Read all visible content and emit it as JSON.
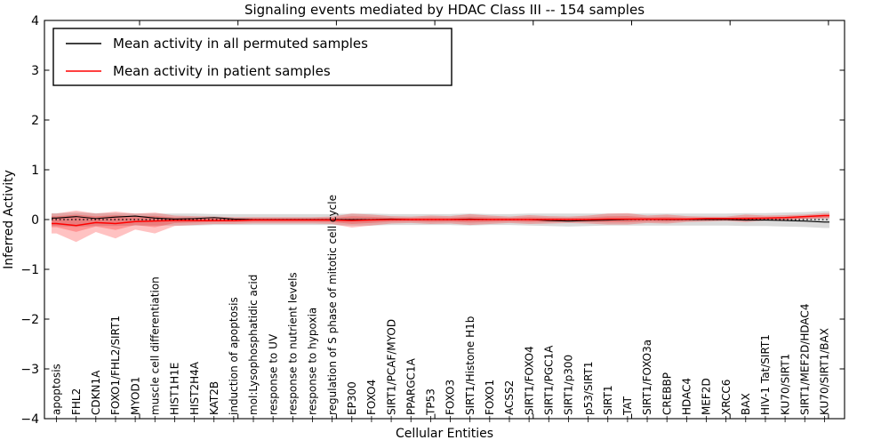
{
  "legend": {
    "items": [
      {
        "label": "Mean activity in all permuted samples",
        "color": "#000000"
      },
      {
        "label": "Mean activity in patient samples",
        "color": "#ff0000"
      }
    ]
  },
  "chart_data": {
    "type": "line",
    "title": "Signaling events mediated by HDAC Class III -- 154 samples",
    "xlabel": "Cellular Entities",
    "ylabel": "Inferred Activity",
    "ylim": [
      -4,
      4
    ],
    "grid": false,
    "legend_position": "upper left",
    "zero_line": {
      "style": "dotted",
      "color": "#000000",
      "y": 0
    },
    "ytick_values": [
      4,
      3,
      2,
      1,
      0,
      -1,
      -2,
      -3,
      -4
    ],
    "ytick_labels": [
      "4",
      "3",
      "2",
      "1",
      "0",
      "−1",
      "−2",
      "−3",
      "−4"
    ],
    "categories": [
      "apoptosis",
      "FHL2",
      "CDKN1A",
      "FOXO1/FHL2/SIRT1",
      "MYOD1",
      "muscle cell differentiation",
      "HIST1H1E",
      "HIST2H4A",
      "KAT2B",
      "induction of apoptosis",
      "mol:Lysophosphatidic acid",
      "response to UV",
      "response to nutrient levels",
      "response to hypoxia",
      "regulation of S phase of mitotic cell cycle",
      "EP300",
      "FOXO4",
      "SIRT1/PCAF/MYOD",
      "PPARGC1A",
      "TP53",
      "FOXO3",
      "SIRT1/Histone H1b",
      "FOXO1",
      "ACSS2",
      "SIRT1/FOXO4",
      "SIRT1/PGC1A",
      "SIRT1/p300",
      "p53/SIRT1",
      "SIRT1",
      "TAT",
      "SIRT1/FOXO3a",
      "CREBBP",
      "HDAC4",
      "MEF2D",
      "XRCC6",
      "BAX",
      "HIV-1 Tat/SIRT1",
      "KU70/SIRT1",
      "SIRT1/MEF2D/HDAC4",
      "KU70/SIRT1/BAX"
    ],
    "series": [
      {
        "name": "Mean activity in all permuted samples",
        "color": "#000000",
        "values": [
          0.03,
          0.06,
          0.02,
          0.05,
          0.07,
          0.03,
          0.01,
          0.02,
          0.04,
          0.01,
          0.0,
          0.0,
          0.0,
          0.0,
          0.0,
          0.0,
          0.0,
          0.01,
          0.0,
          0.0,
          0.0,
          0.01,
          0.0,
          0.0,
          0.0,
          -0.02,
          -0.03,
          -0.02,
          -0.01,
          0.0,
          0.01,
          0.0,
          0.0,
          0.0,
          0.0,
          -0.01,
          -0.01,
          -0.02,
          -0.03,
          -0.05
        ]
      },
      {
        "name": "Mean activity in patient samples",
        "color": "#ff0000",
        "values": [
          -0.08,
          -0.12,
          -0.06,
          -0.08,
          -0.04,
          -0.03,
          -0.02,
          -0.02,
          -0.02,
          -0.02,
          -0.01,
          -0.01,
          -0.01,
          -0.01,
          -0.01,
          -0.02,
          -0.01,
          0.0,
          0.0,
          0.0,
          0.0,
          0.0,
          0.0,
          0.0,
          0.0,
          0.0,
          0.0,
          0.0,
          0.01,
          0.01,
          0.01,
          0.01,
          0.01,
          0.02,
          0.02,
          0.02,
          0.03,
          0.04,
          0.06,
          0.08
        ]
      }
    ],
    "bands": [
      {
        "name": "permuted-samples-std-band",
        "color": "rgba(0,0,0,0.14)",
        "upper": [
          0.13,
          0.14,
          0.13,
          0.13,
          0.12,
          0.12,
          0.12,
          0.12,
          0.11,
          0.11,
          0.11,
          0.11,
          0.11,
          0.11,
          0.11,
          0.12,
          0.12,
          0.11,
          0.11,
          0.11,
          0.11,
          0.12,
          0.11,
          0.11,
          0.12,
          0.12,
          0.12,
          0.12,
          0.12,
          0.12,
          0.12,
          0.12,
          0.12,
          0.12,
          0.12,
          0.13,
          0.13,
          0.14,
          0.15,
          0.17
        ],
        "lower": [
          -0.13,
          -0.15,
          -0.13,
          -0.13,
          -0.12,
          -0.12,
          -0.12,
          -0.12,
          -0.11,
          -0.11,
          -0.11,
          -0.11,
          -0.11,
          -0.11,
          -0.11,
          -0.12,
          -0.12,
          -0.11,
          -0.11,
          -0.11,
          -0.11,
          -0.12,
          -0.11,
          -0.11,
          -0.12,
          -0.13,
          -0.14,
          -0.13,
          -0.12,
          -0.12,
          -0.12,
          -0.12,
          -0.12,
          -0.12,
          -0.12,
          -0.13,
          -0.13,
          -0.14,
          -0.15,
          -0.17
        ]
      },
      {
        "name": "patient-samples-std-band",
        "color": "rgba(255,0,0,0.24)",
        "upper": [
          0.12,
          0.18,
          0.12,
          0.16,
          0.12,
          0.14,
          0.08,
          0.07,
          0.06,
          0.05,
          0.05,
          0.05,
          0.05,
          0.05,
          0.06,
          0.12,
          0.1,
          0.07,
          0.06,
          0.08,
          0.07,
          0.11,
          0.08,
          0.06,
          0.09,
          0.07,
          0.06,
          0.08,
          0.12,
          0.13,
          0.08,
          0.1,
          0.07,
          0.06,
          0.06,
          0.1,
          0.08,
          0.09,
          0.1,
          0.13
        ],
        "lower": [
          -0.28,
          -0.45,
          -0.25,
          -0.38,
          -0.2,
          -0.28,
          -0.13,
          -0.11,
          -0.09,
          -0.09,
          -0.08,
          -0.08,
          -0.08,
          -0.08,
          -0.09,
          -0.16,
          -0.12,
          -0.08,
          -0.07,
          -0.09,
          -0.08,
          -0.11,
          -0.09,
          -0.07,
          -0.09,
          -0.08,
          -0.07,
          -0.08,
          -0.1,
          -0.1,
          -0.07,
          -0.08,
          -0.05,
          -0.04,
          -0.03,
          -0.05,
          -0.02,
          -0.01,
          0.02,
          0.04
        ]
      }
    ]
  }
}
